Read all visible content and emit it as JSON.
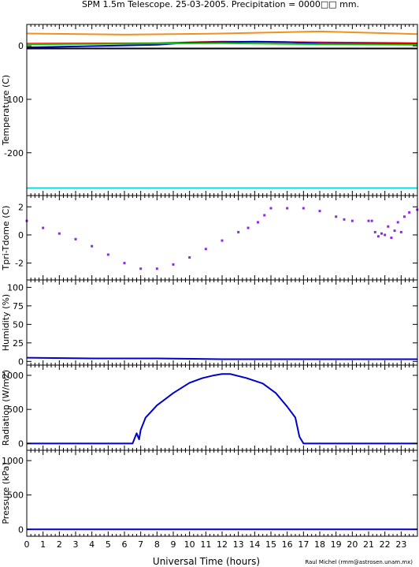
{
  "title": "SPM 1.5m Telescope. 25-03-2005. Precipitation = 0000□□ mm.",
  "credit": "Raul Michel (rmm@astrosen.unam.mx)",
  "xlabel": "Universal Time (hours)",
  "chart_data": [
    {
      "type": "line",
      "ylabel": "Temperature (C)",
      "xlim": [
        0,
        24
      ],
      "ylim": [
        -280,
        40
      ],
      "yticks": [
        0,
        -100,
        -200
      ],
      "series": [
        {
          "color": "#f09020",
          "x": [
            0,
            6,
            12,
            18,
            24
          ],
          "y": [
            23,
            21,
            23,
            27,
            22
          ]
        },
        {
          "color": "#ff0000",
          "x": [
            0,
            8,
            12,
            16,
            24
          ],
          "y": [
            4,
            5,
            8,
            7,
            5
          ]
        },
        {
          "color": "#0000cc",
          "x": [
            0,
            8,
            10,
            14,
            16,
            18,
            24
          ],
          "y": [
            -3,
            2,
            6,
            8,
            7,
            4,
            3
          ]
        },
        {
          "color": "#00cc00",
          "x": [
            0,
            6,
            12,
            18,
            24
          ],
          "y": [
            3,
            4,
            5,
            3,
            2
          ]
        },
        {
          "color": "#000000",
          "x": [
            0,
            24
          ],
          "y": [
            -5,
            -5
          ]
        },
        {
          "color": "#00e0e0",
          "x": [
            0,
            24
          ],
          "y": [
            -266,
            -266
          ]
        }
      ]
    },
    {
      "type": "scatter",
      "ylabel": "Tpri-Tdome (C)",
      "xlim": [
        0,
        24
      ],
      "ylim": [
        -3.2,
        2.8
      ],
      "yticks": [
        2,
        0,
        -2
      ],
      "series": [
        {
          "color": "#8a2be2",
          "x": [
            0,
            1,
            2,
            3,
            4,
            5,
            6,
            7,
            8,
            9,
            10,
            11,
            12,
            13,
            13.6,
            14.2,
            14.6,
            15,
            16,
            17,
            18,
            19,
            19.5,
            20,
            21,
            21.2,
            21.4,
            21.6,
            21.8,
            22,
            22.2,
            22.4,
            22.6,
            22.8,
            23,
            23.2,
            23.5,
            23.99
          ],
          "y": [
            1.0,
            0.5,
            0.1,
            -0.3,
            -0.8,
            -1.4,
            -2.0,
            -2.4,
            -2.4,
            -2.1,
            -1.6,
            -1.0,
            -0.4,
            0.2,
            0.5,
            0.9,
            1.4,
            1.9,
            1.9,
            1.9,
            1.7,
            1.3,
            1.1,
            1.0,
            1.0,
            1.0,
            0.2,
            -0.1,
            0.1,
            0.0,
            0.6,
            -0.2,
            0.3,
            0.9,
            0.2,
            1.3,
            1.6,
            1.8
          ]
        }
      ]
    },
    {
      "type": "line",
      "ylabel": "Humidity (%)",
      "xlim": [
        0,
        24
      ],
      "ylim": [
        -5,
        110
      ],
      "yticks": [
        0,
        25,
        50,
        75,
        100
      ],
      "series": [
        {
          "color": "#0000cc",
          "x": [
            0,
            4,
            8,
            12,
            16,
            20,
            24
          ],
          "y": [
            5,
            4,
            4,
            3,
            3,
            3,
            3
          ]
        }
      ]
    },
    {
      "type": "line",
      "ylabel": "Radiation (W/m2)",
      "xlim": [
        0,
        24
      ],
      "ylim": [
        -100,
        1150
      ],
      "yticks": [
        0,
        500,
        1000
      ],
      "series": [
        {
          "color": "#0000cc",
          "x": [
            0,
            6.5,
            6.75,
            6.9,
            7.0,
            7.3,
            8,
            9,
            10,
            10.8,
            11.5,
            12.0,
            12.5,
            13.5,
            14.5,
            15.3,
            16,
            16.5,
            16.75,
            17.0,
            24
          ],
          "y": [
            0,
            0,
            150,
            60,
            200,
            380,
            560,
            740,
            890,
            960,
            1000,
            1020,
            1020,
            960,
            880,
            740,
            540,
            380,
            100,
            0,
            0
          ]
        }
      ]
    },
    {
      "type": "line",
      "ylabel": "Pressure (kPa)",
      "xlim": [
        0,
        24
      ],
      "ylim": [
        -100,
        1150
      ],
      "yticks": [
        0,
        500,
        1000
      ],
      "series": [
        {
          "color": "#0000cc",
          "x": [
            0,
            24
          ],
          "y": [
            0,
            0
          ]
        }
      ]
    }
  ],
  "xticks": [
    0,
    1,
    2,
    3,
    4,
    5,
    6,
    7,
    8,
    9,
    10,
    11,
    12,
    13,
    14,
    15,
    16,
    17,
    18,
    19,
    20,
    21,
    22,
    23
  ]
}
